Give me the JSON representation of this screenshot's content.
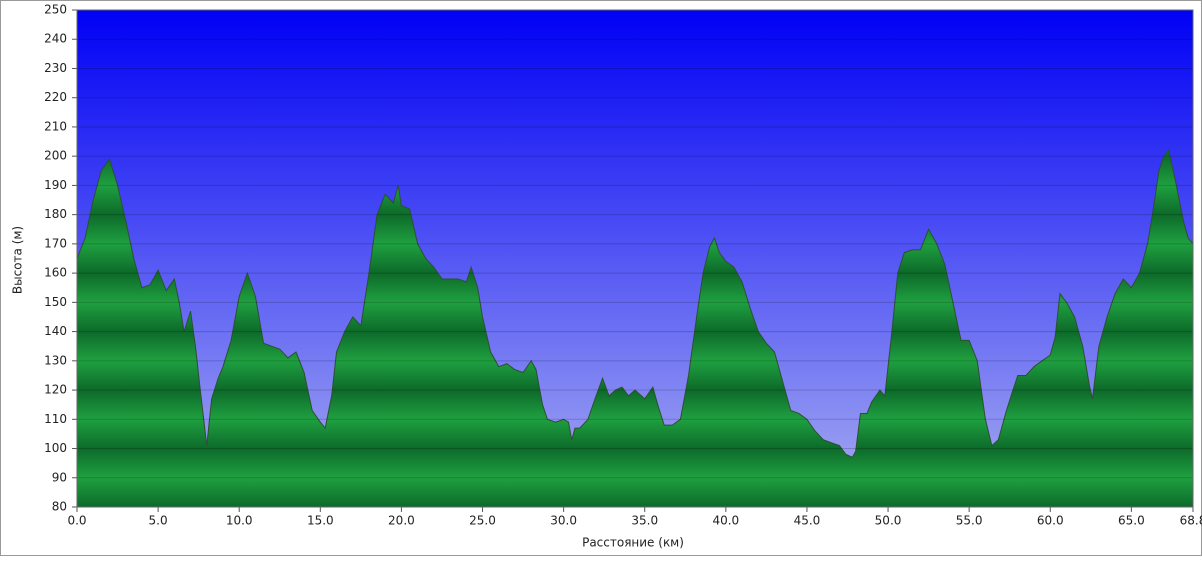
{
  "chart_data": {
    "type": "area",
    "x_label": "Расстояние   (км)",
    "y_label": "Высота (м)",
    "color": "#1fa040",
    "x": [
      0,
      0.5,
      1,
      1.5,
      2,
      2.5,
      3,
      3.5,
      4,
      4.5,
      5,
      5.5,
      6,
      6.3,
      6.6,
      7,
      7.3,
      7.6,
      8,
      8.3,
      8.7,
      9,
      9.5,
      10,
      10.5,
      11,
      11.5,
      12,
      12.5,
      13,
      13.5,
      14,
      14.5,
      15,
      15.3,
      15.7,
      16,
      16.5,
      17,
      17.5,
      18,
      18.5,
      19,
      19.5,
      19.8,
      20,
      20.5,
      21,
      21.5,
      22,
      22.5,
      23,
      23.5,
      24,
      24.3,
      24.7,
      25,
      25.5,
      26,
      26.5,
      27,
      27.5,
      28,
      28.3,
      28.7,
      29,
      29.5,
      30,
      30.3,
      30.5,
      30.7,
      31,
      31.5,
      32,
      32.4,
      32.8,
      33.2,
      33.6,
      34,
      34.4,
      35,
      35.5,
      35.8,
      36.2,
      36.7,
      37.2,
      37.7,
      38.2,
      38.6,
      39,
      39.3,
      39.6,
      40,
      40.5,
      41,
      41.5,
      42,
      42.5,
      43,
      43.5,
      44,
      44.5,
      45,
      45.5,
      46,
      46.5,
      47,
      47.4,
      47.8,
      48,
      48.3,
      48.7,
      49,
      49.5,
      49.8,
      50.2,
      50.6,
      51,
      51.5,
      52,
      52.5,
      53,
      53.5,
      54,
      54.5,
      55,
      55.5,
      56,
      56.4,
      56.8,
      57.3,
      57.7,
      58,
      58.5,
      59,
      59.5,
      60,
      60.3,
      60.6,
      61,
      61.5,
      62,
      62.4,
      62.6,
      63,
      63.5,
      64,
      64.5,
      65,
      65.5,
      66,
      66.3,
      66.7,
      67,
      67.3,
      67.7,
      68.2,
      68.5,
      68.8
    ],
    "values": [
      165,
      172,
      185,
      195,
      199,
      190,
      178,
      165,
      155,
      156,
      161,
      154,
      158,
      150,
      140,
      147,
      135,
      120,
      101,
      117,
      124,
      128,
      137,
      152,
      160,
      152,
      136,
      135,
      134,
      131,
      133,
      126,
      113,
      109,
      107,
      118,
      133,
      140,
      145,
      142,
      160,
      180,
      187,
      184,
      190,
      183,
      182,
      170,
      165,
      162,
      158,
      158,
      158,
      157,
      162,
      155,
      145,
      133,
      128,
      129,
      127,
      126,
      130,
      127,
      115,
      110,
      109,
      110,
      109,
      103,
      107,
      107,
      110,
      118,
      124,
      118,
      120,
      121,
      118,
      120,
      117,
      121,
      115,
      108,
      108,
      110,
      125,
      145,
      160,
      169,
      172,
      167,
      164,
      162,
      157,
      148,
      140,
      136,
      133,
      123,
      113,
      112,
      110,
      106,
      103,
      102,
      101,
      98,
      97,
      99,
      112,
      112,
      116,
      120,
      118,
      138,
      160,
      167,
      168,
      168,
      175,
      170,
      163,
      150,
      137,
      137,
      130,
      110,
      101,
      103,
      113,
      120,
      125,
      125,
      128,
      130,
      132,
      138,
      153,
      150,
      145,
      135,
      122,
      117,
      135,
      145,
      153,
      158,
      155,
      160,
      170,
      180,
      195,
      200,
      202,
      192,
      178,
      172,
      170
    ],
    "xlim": [
      0,
      68.8
    ],
    "ylim": [
      80,
      250
    ],
    "xticks": [
      {
        "value": 0,
        "label": "0.0"
      },
      {
        "value": 5,
        "label": "5.0"
      },
      {
        "value": 10,
        "label": "10.0"
      },
      {
        "value": 15,
        "label": "15.0"
      },
      {
        "value": 20,
        "label": "20.0"
      },
      {
        "value": 25,
        "label": "25.0"
      },
      {
        "value": 30,
        "label": "30.0"
      },
      {
        "value": 35,
        "label": "35.0"
      },
      {
        "value": 40,
        "label": "40.0"
      },
      {
        "value": 45,
        "label": "45.0"
      },
      {
        "value": 50,
        "label": "50.0"
      },
      {
        "value": 55,
        "label": "55.0"
      },
      {
        "value": 60,
        "label": "60.0"
      },
      {
        "value": 65,
        "label": "65.0"
      },
      68.8
    ],
    "yticks": [
      80,
      90,
      100,
      110,
      120,
      130,
      140,
      150,
      160,
      170,
      180,
      190,
      200,
      210,
      220,
      230,
      240,
      250
    ],
    "grid": true
  }
}
